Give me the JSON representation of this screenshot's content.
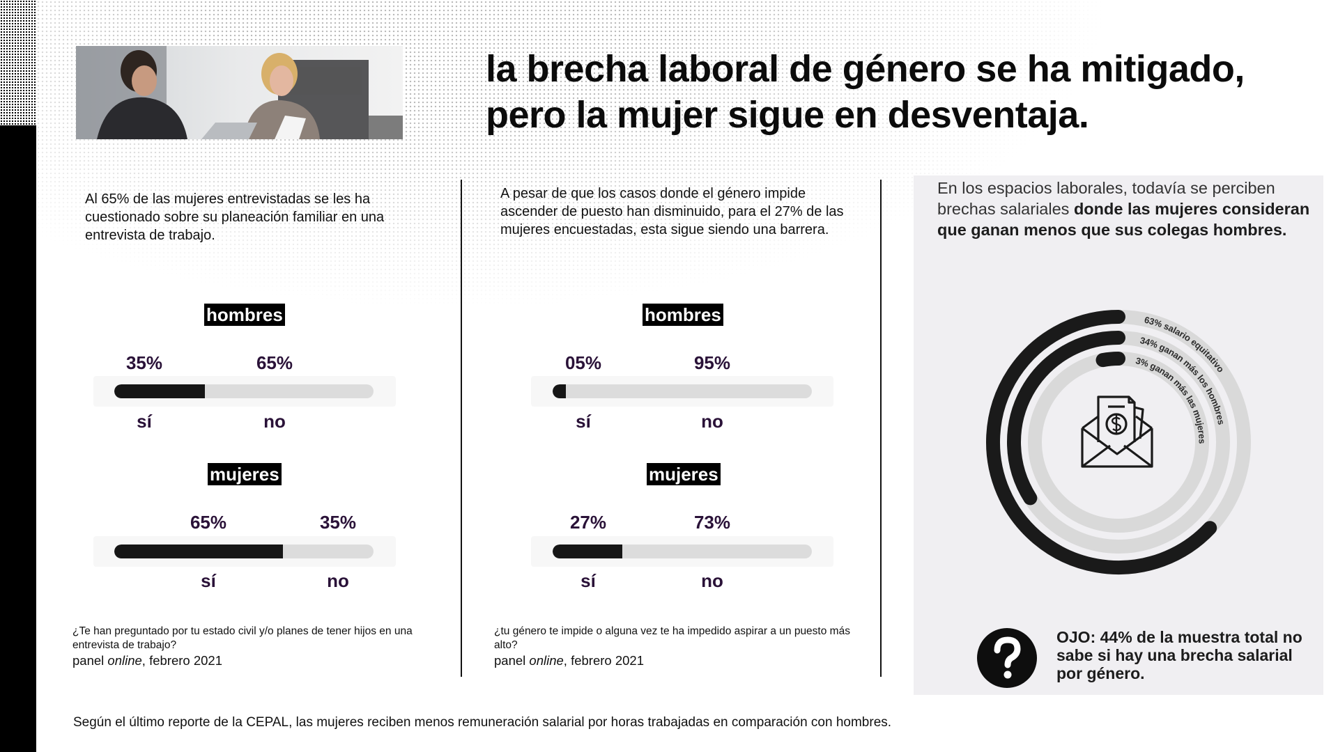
{
  "title": {
    "line1": "la brecha laboral de género se ha mitigado,",
    "line2": "pero la mujer sigue en desventaja."
  },
  "colors": {
    "bar_fill": "#161616",
    "bar_track": "#dcdcdc",
    "percent_text": "#2a1238",
    "panel_bg": "#f0eff2",
    "ring_dark": "#1a1a1a",
    "ring_light": "#d9d9d9"
  },
  "section1": {
    "intro": "Al 65% de las mujeres entrevistadas se les ha cuestionado sobre su planeación familiar en una entrevista de trabajo.",
    "question": "¿Te han preguntado por tu estado civil y/o planes de tener hijos en una entrevista de trabajo?",
    "source_prefix": "panel ",
    "source_italic": "online",
    "source_suffix": ", febrero 2021"
  },
  "section2": {
    "intro": "A pesar de que los casos donde el género impide ascender de puesto han disminuido, para el 27% de las mujeres encuestadas, esta sigue siendo una barrera.",
    "question": "¿tu género te impide o alguna vez te ha impedido aspirar a un puesto más alto?",
    "source_prefix": "panel ",
    "source_italic": "online",
    "source_suffix": ", febrero 2021"
  },
  "chart_data": [
    {
      "type": "bar",
      "orientation": "horizontal-stacked",
      "group": "hombres",
      "categories": [
        "sí",
        "no"
      ],
      "value_labels": [
        "35%",
        "65%"
      ],
      "values": [
        35,
        65
      ]
    },
    {
      "type": "bar",
      "orientation": "horizontal-stacked",
      "group": "mujeres",
      "categories": [
        "sí",
        "no"
      ],
      "value_labels": [
        "65%",
        "35%"
      ],
      "values": [
        65,
        35
      ]
    },
    {
      "type": "bar",
      "orientation": "horizontal-stacked",
      "group": "hombres",
      "categories": [
        "sí",
        "no"
      ],
      "value_labels": [
        "05%",
        "95%"
      ],
      "values": [
        5,
        95
      ]
    },
    {
      "type": "bar",
      "orientation": "horizontal-stacked",
      "group": "mujeres",
      "categories": [
        "sí",
        "no"
      ],
      "value_labels": [
        "27%",
        "73%"
      ],
      "values": [
        27,
        73
      ]
    },
    {
      "type": "pie",
      "style": "concentric-rings",
      "categories": [
        "salario equitativo",
        "ganan más los hombres",
        "ganan más las mujeres"
      ],
      "labels": [
        "63% salario equitativo",
        "34% ganan más los hombres",
        "3% ganan más las mujeres"
      ],
      "values": [
        63,
        34,
        3
      ]
    }
  ],
  "right_panel": {
    "intro_plain": "En los espacios laborales, todavía se perciben brechas salariales ",
    "intro_bold": "donde las mujeres consideran que ganan menos que sus colegas hombres.",
    "center_icon": "envelope-dollar-icon",
    "ojo_icon": "question-mark-icon",
    "ojo_text": "OJO: 44% de la muestra total no sabe si hay una brecha salarial por género."
  },
  "footer": "Según el último reporte de la CEPAL, las mujeres reciben menos remuneración salarial por horas trabajadas en comparación con hombres."
}
